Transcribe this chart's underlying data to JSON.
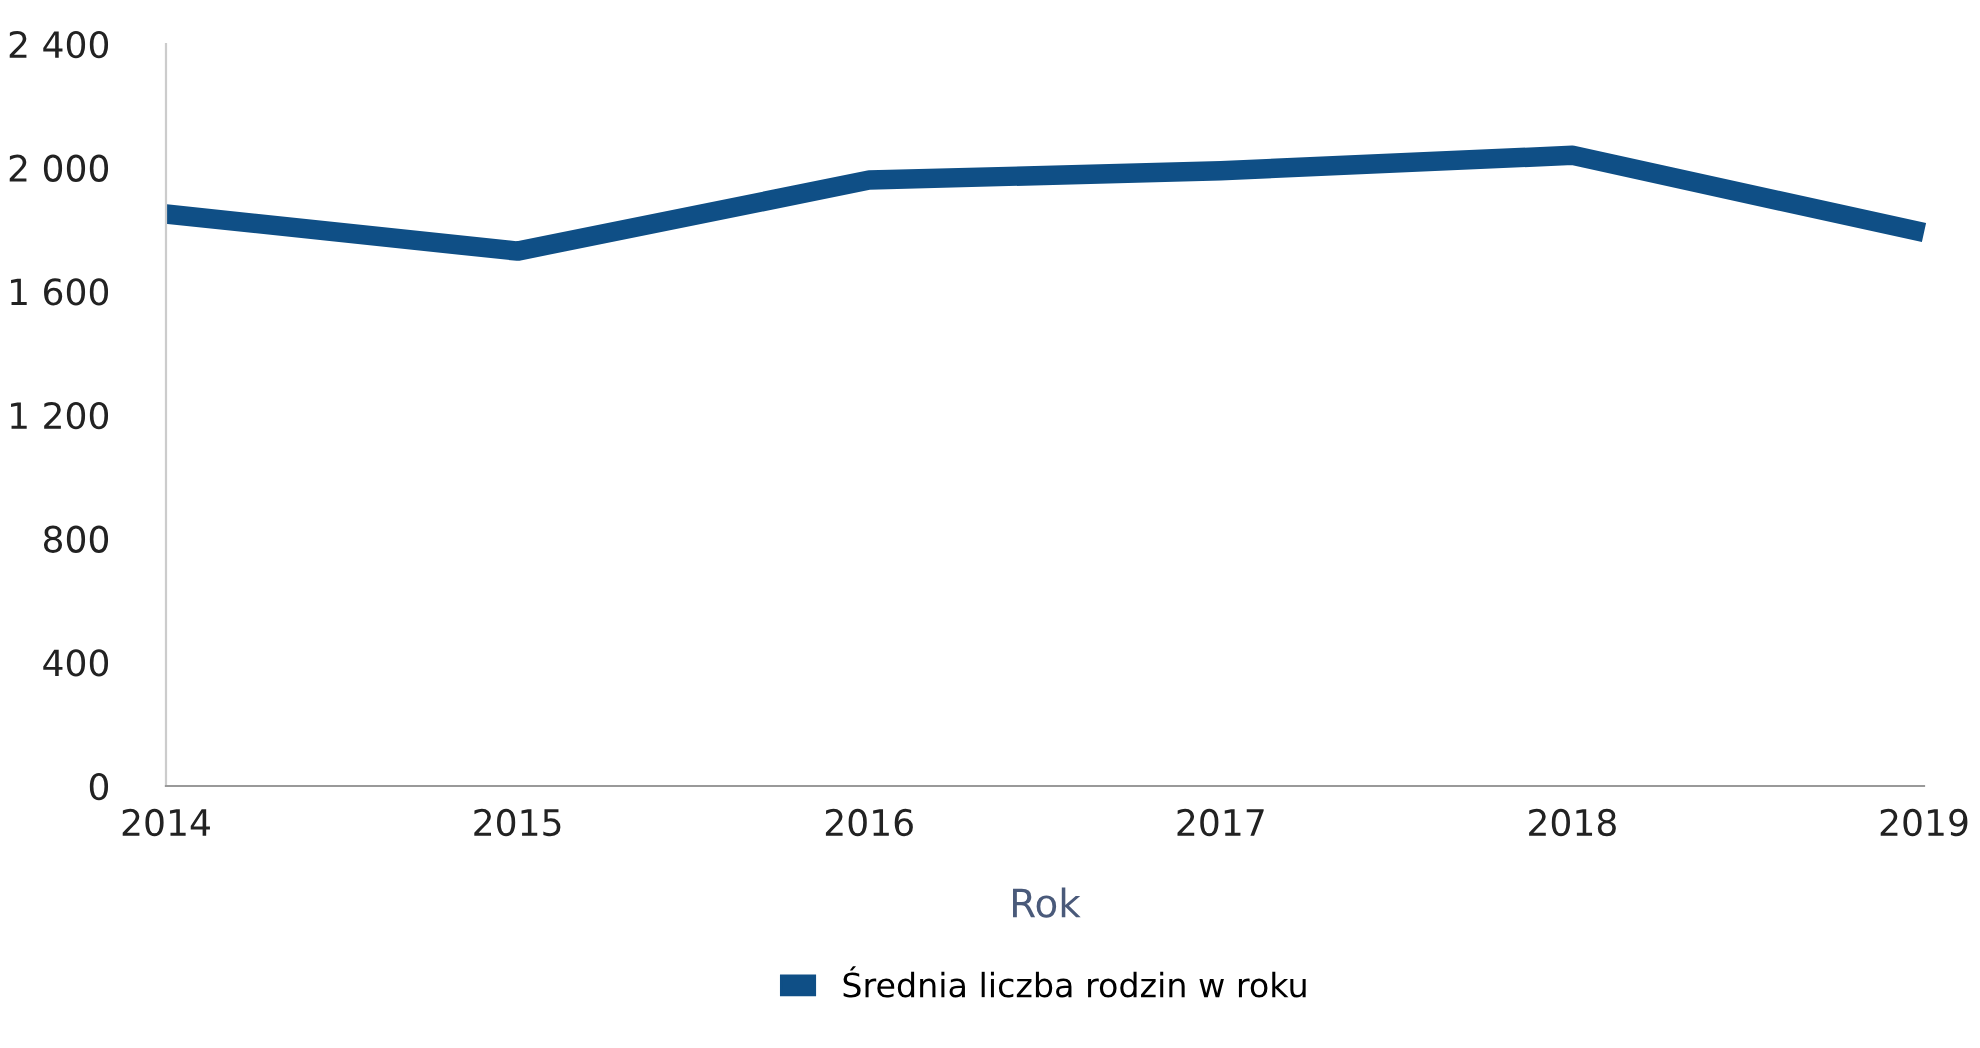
{
  "chart_data": {
    "type": "line",
    "xlabel": "Rok",
    "x": [
      2014,
      2015,
      2016,
      2017,
      2018,
      2019
    ],
    "series": [
      {
        "name": "Średnia liczba rodzin w roku",
        "color": "#0f4f86",
        "values": [
          1850,
          1730,
          1960,
          1990,
          2040,
          1790
        ]
      }
    ],
    "xlim": [
      2014,
      2019
    ],
    "xticks": [
      2014,
      2015,
      2016,
      2017,
      2018,
      2019
    ],
    "ylim": [
      0,
      2400
    ],
    "yticks": [
      0,
      {
        "value": 400,
        "label": "400"
      },
      {
        "value": 800,
        "label": "800"
      },
      {
        "value": 1200,
        "label": "1 200"
      },
      {
        "value": 1600,
        "label": "1 600"
      },
      {
        "value": 2000,
        "label": "2 000"
      },
      {
        "value": 2400,
        "label": "2 400"
      }
    ],
    "grid": false,
    "legend": "bottom",
    "marker": "none",
    "line_style": "solid"
  }
}
